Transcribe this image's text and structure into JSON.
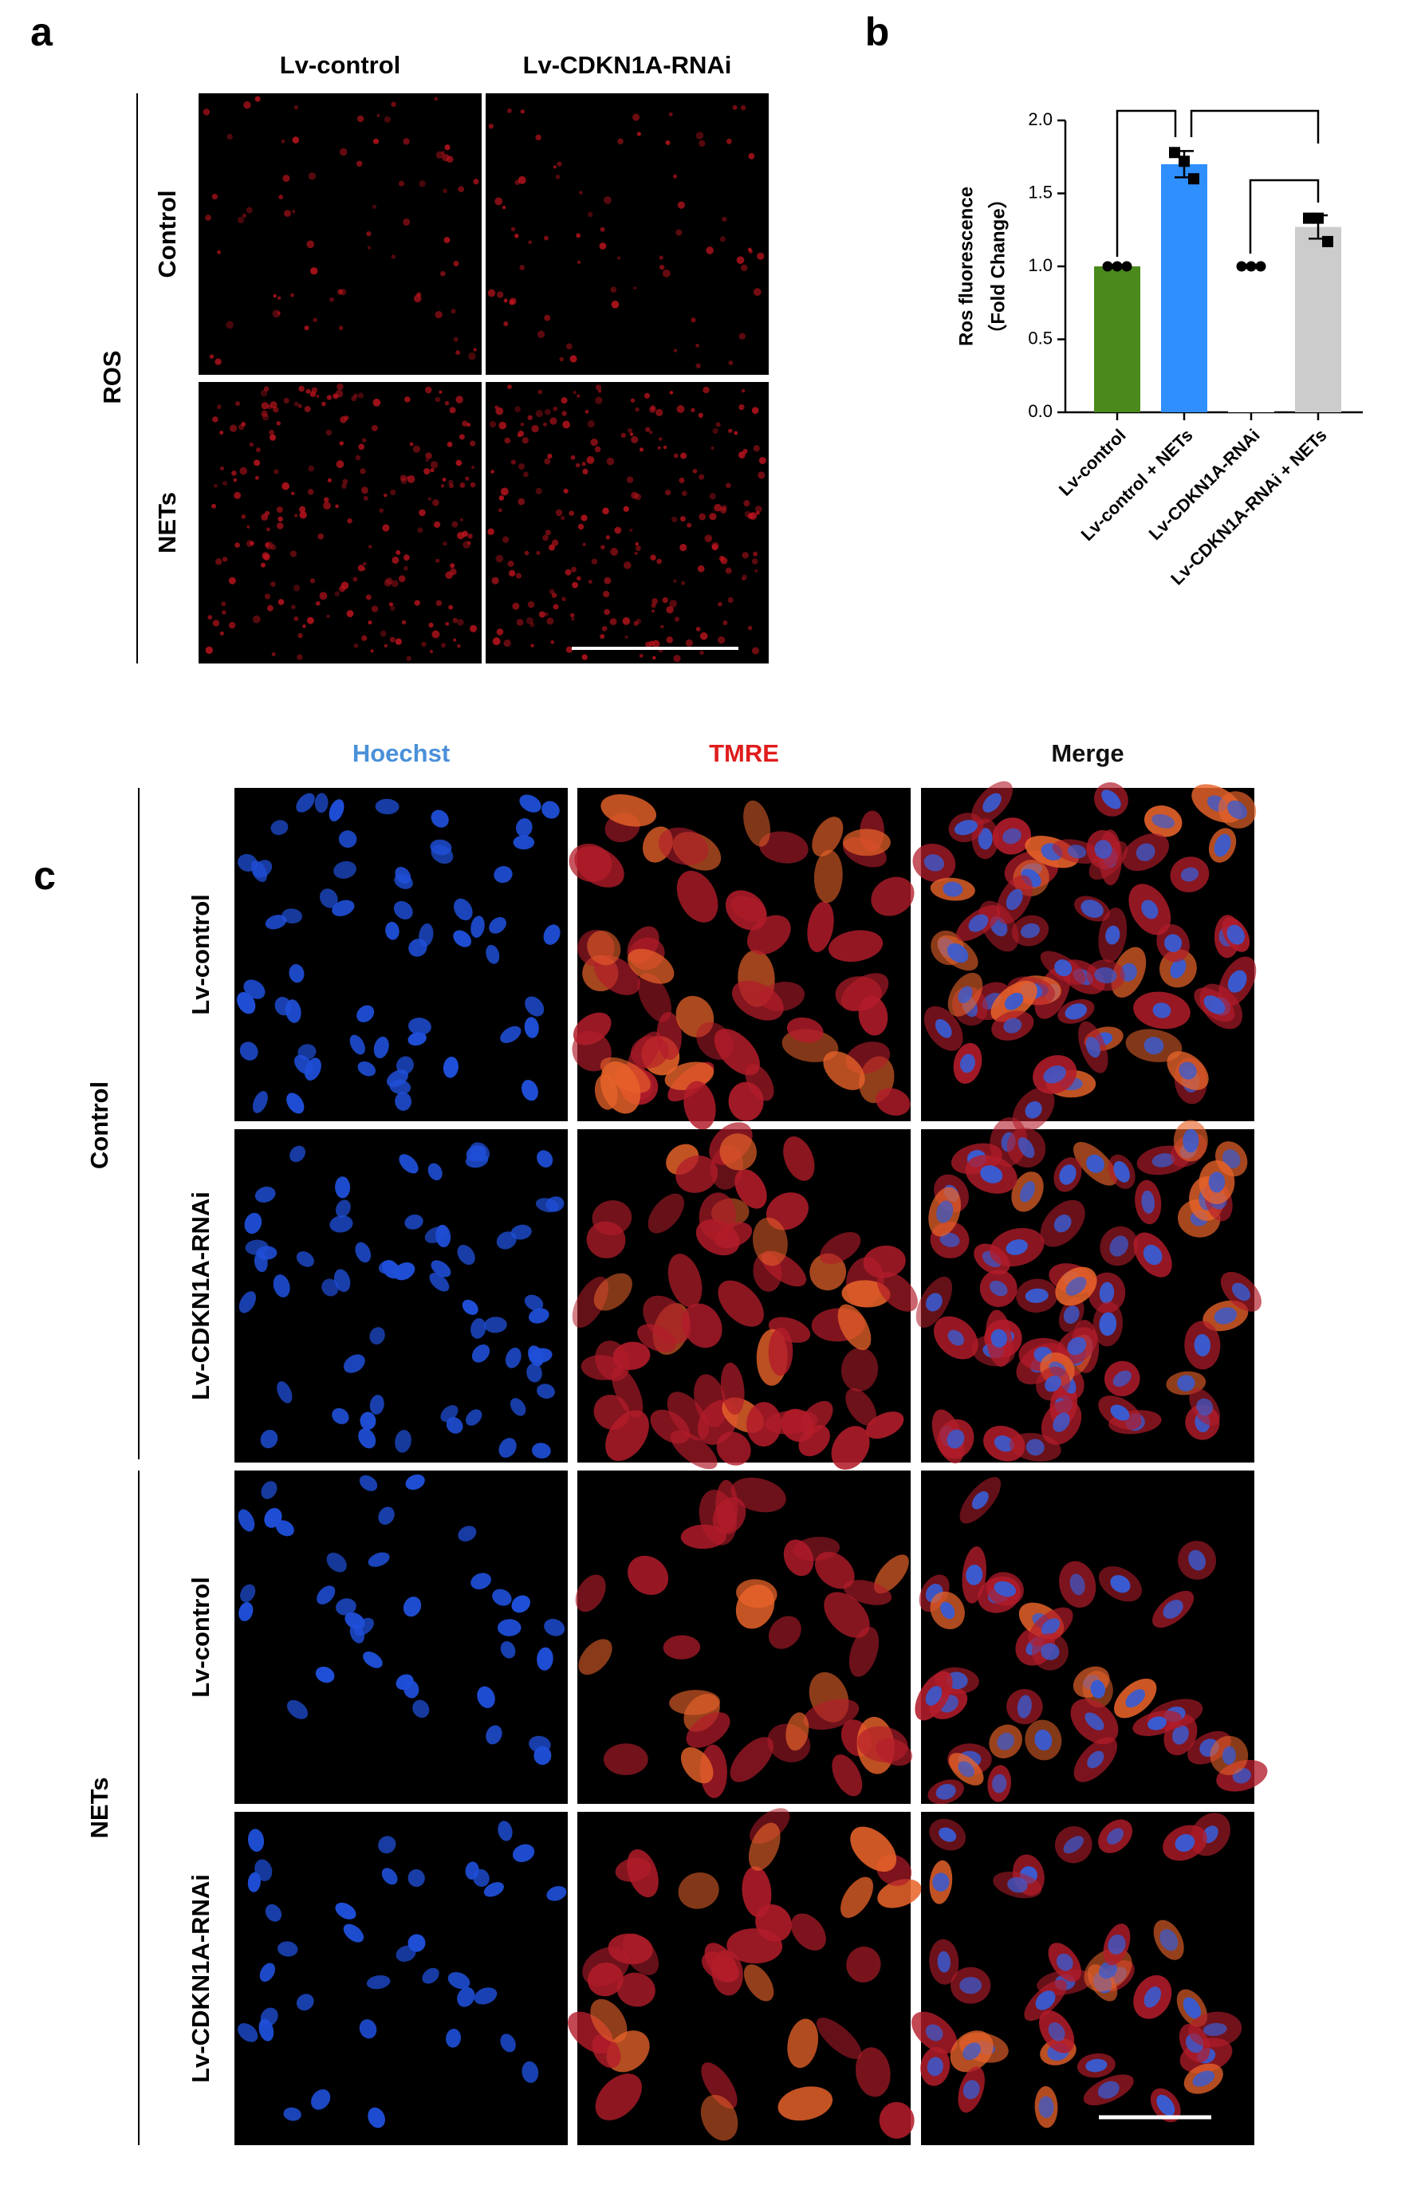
{
  "panel_a": {
    "label": "a",
    "columns": [
      "Lv-control",
      "Lv-CDKN1A-RNAi"
    ],
    "rows": [
      "Control",
      "NETs"
    ],
    "group": "ROS"
  },
  "chart_data": {
    "type": "bar",
    "panel_label": "b",
    "y_label": [
      "Ros fluorescence",
      "（Fold Change）"
    ],
    "categories": [
      "Lv-control",
      "Lv-control + NETs",
      "Lv-CDKN1A-RNAi",
      "Lv-CDKN1A-RNAi + NETs"
    ],
    "values": [
      1.0,
      1.7,
      1.0,
      1.27
    ],
    "errors": [
      0.01,
      0.09,
      0.01,
      0.08
    ],
    "points": [
      [
        1.0,
        1.0,
        1.0
      ],
      [
        1.78,
        1.72,
        1.6
      ],
      [
        1.0,
        1.0,
        1.0
      ],
      [
        1.33,
        1.33,
        1.17
      ]
    ],
    "colors": [
      "#4a8a1c",
      "#2f8fff",
      "#ffffff",
      "#cccccc"
    ],
    "ylim": [
      0,
      2.0
    ],
    "yticks": [
      {
        "value": 0,
        "label": "0.0"
      },
      {
        "value": 0.5,
        "label": "0.5"
      },
      {
        "value": 1,
        "label": "1.0"
      },
      {
        "value": 1.5,
        "label": "1.5"
      },
      {
        "value": 2,
        "label": "2.0"
      }
    ]
  },
  "panel_c": {
    "label": "c",
    "columns": [
      "Hoechst",
      "TMRE",
      "Merge"
    ],
    "row_groups": [
      {
        "name": "Control",
        "rows": [
          "Lv-control",
          "Lv-CDKN1A-RNAi"
        ]
      },
      {
        "name": "NETs",
        "rows": [
          "Lv-control",
          "Lv-CDKN1A-RNAi"
        ]
      }
    ]
  }
}
